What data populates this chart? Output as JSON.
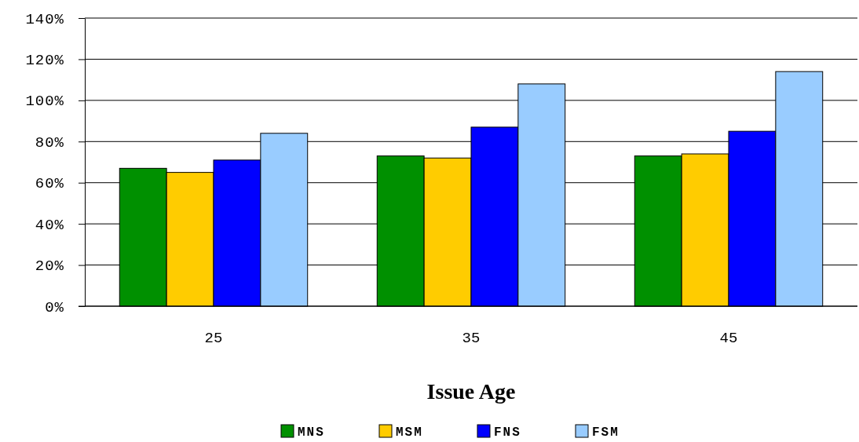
{
  "chart_data": {
    "type": "bar",
    "xlabel": "Issue Age",
    "categories": [
      "25",
      "35",
      "45"
    ],
    "series": [
      {
        "name": "MNS",
        "color": "#009000",
        "values": [
          67,
          73,
          73
        ]
      },
      {
        "name": "MSM",
        "color": "#ffcc00",
        "values": [
          65,
          72,
          74
        ]
      },
      {
        "name": "FNS",
        "color": "#0000ff",
        "values": [
          71,
          87,
          85
        ]
      },
      {
        "name": "FSM",
        "color": "#99ccff",
        "values": [
          84,
          108,
          114
        ]
      }
    ],
    "ylim": [
      0,
      140
    ],
    "yticks": [
      {
        "value": 0,
        "label": "0%"
      },
      {
        "value": 20,
        "label": "20%"
      },
      {
        "value": 40,
        "label": "40%"
      },
      {
        "value": 60,
        "label": "60%"
      },
      {
        "value": 80,
        "label": "80%"
      },
      {
        "value": 100,
        "label": "100%"
      },
      {
        "value": 120,
        "label": "120%"
      },
      {
        "value": 140,
        "label": "140%"
      }
    ],
    "grid": "y",
    "legend": "bottom"
  }
}
